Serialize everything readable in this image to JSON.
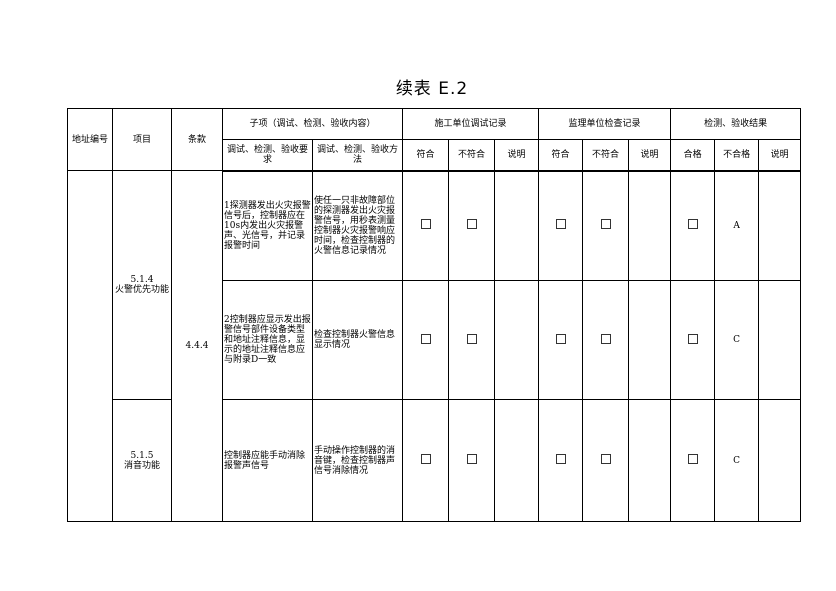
{
  "title": "续表 E.2",
  "headers": {
    "address": "地址编号",
    "item": "项目",
    "clause": "条款",
    "subitem": "子项（调试、检测、验收内容）",
    "requirement": "调试、检测、验收要求",
    "method": "调试、检测、验收方法",
    "construction": "施工单位调试记录",
    "supervision": "监理单位检查记录",
    "result": "检测、验收结果",
    "conform": "符合",
    "nonconform": "不符合",
    "note": "说明",
    "pass": "合格",
    "fail": "不合格"
  },
  "clause": "4.4.4",
  "items": [
    {
      "code": "5.1.4",
      "name": "火警优先功能"
    },
    {
      "code": "5.1.5",
      "name": "消音功能"
    }
  ],
  "rows": [
    {
      "requirement": "1探测器发出火灾报警信号后，控制器应在10s内发出火灾报警声、光信号，并记录报警时间",
      "method": "使任一只非故障部位的探测器发出火灾报警信号，用秒表测量控制器火灾报警响应时间，检查控制器的火警信息记录情况",
      "fail_value": "A"
    },
    {
      "requirement": "2控制器应显示发出报警信号部件设备类型和地址注释信息，显示的地址注释信息应与附录D一致",
      "method": "检查控制器火警信息显示情况",
      "fail_value": "C"
    },
    {
      "requirement": "控制器应能手动消除报警声信号",
      "method": "手动操作控制器的消音键，检查控制器声信号消除情况",
      "fail_value": "C"
    }
  ]
}
